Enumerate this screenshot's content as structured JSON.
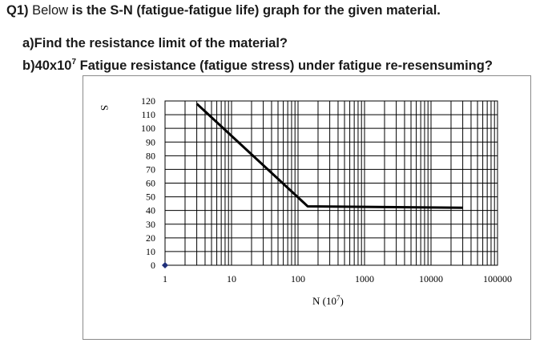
{
  "question": {
    "number": "Q1)",
    "intro": "Below",
    "rest": " is the S-N (fatigue-fatigue life) graph for the given material.",
    "part_a_label": "a)",
    "part_a_text": "Find the resistance limit of the material?",
    "part_b_label": "b)",
    "part_b_value": "40x10",
    "part_b_exp": "7",
    "part_b_text": " Fatigue resistance (fatigue stress) under fatigue re-resensuming?"
  },
  "chart_data": {
    "type": "line",
    "title": "",
    "xlabel": "N (10 7)",
    "xlabel_base": "N (10",
    "xlabel_exp": "7",
    "xlabel_close": ")",
    "ylabel": "S",
    "xscale": "log",
    "xlim": [
      1,
      100000
    ],
    "ylim": [
      0,
      120
    ],
    "xticks": [
      "1",
      "10",
      "100",
      "1000",
      "10000",
      "100000"
    ],
    "yticks": [
      "0",
      "10",
      "20",
      "30",
      "40",
      "50",
      "60",
      "70",
      "80",
      "90",
      "100",
      "110",
      "120"
    ],
    "grid": true,
    "series": [
      {
        "x": [
          3,
          140,
          30000
        ],
        "y": [
          118,
          43,
          42
        ]
      }
    ],
    "marker_point": {
      "x": 1,
      "y": 0
    },
    "colors": {
      "line": "#000000",
      "grid": "#000000",
      "marker": "#1f2f7a"
    }
  }
}
